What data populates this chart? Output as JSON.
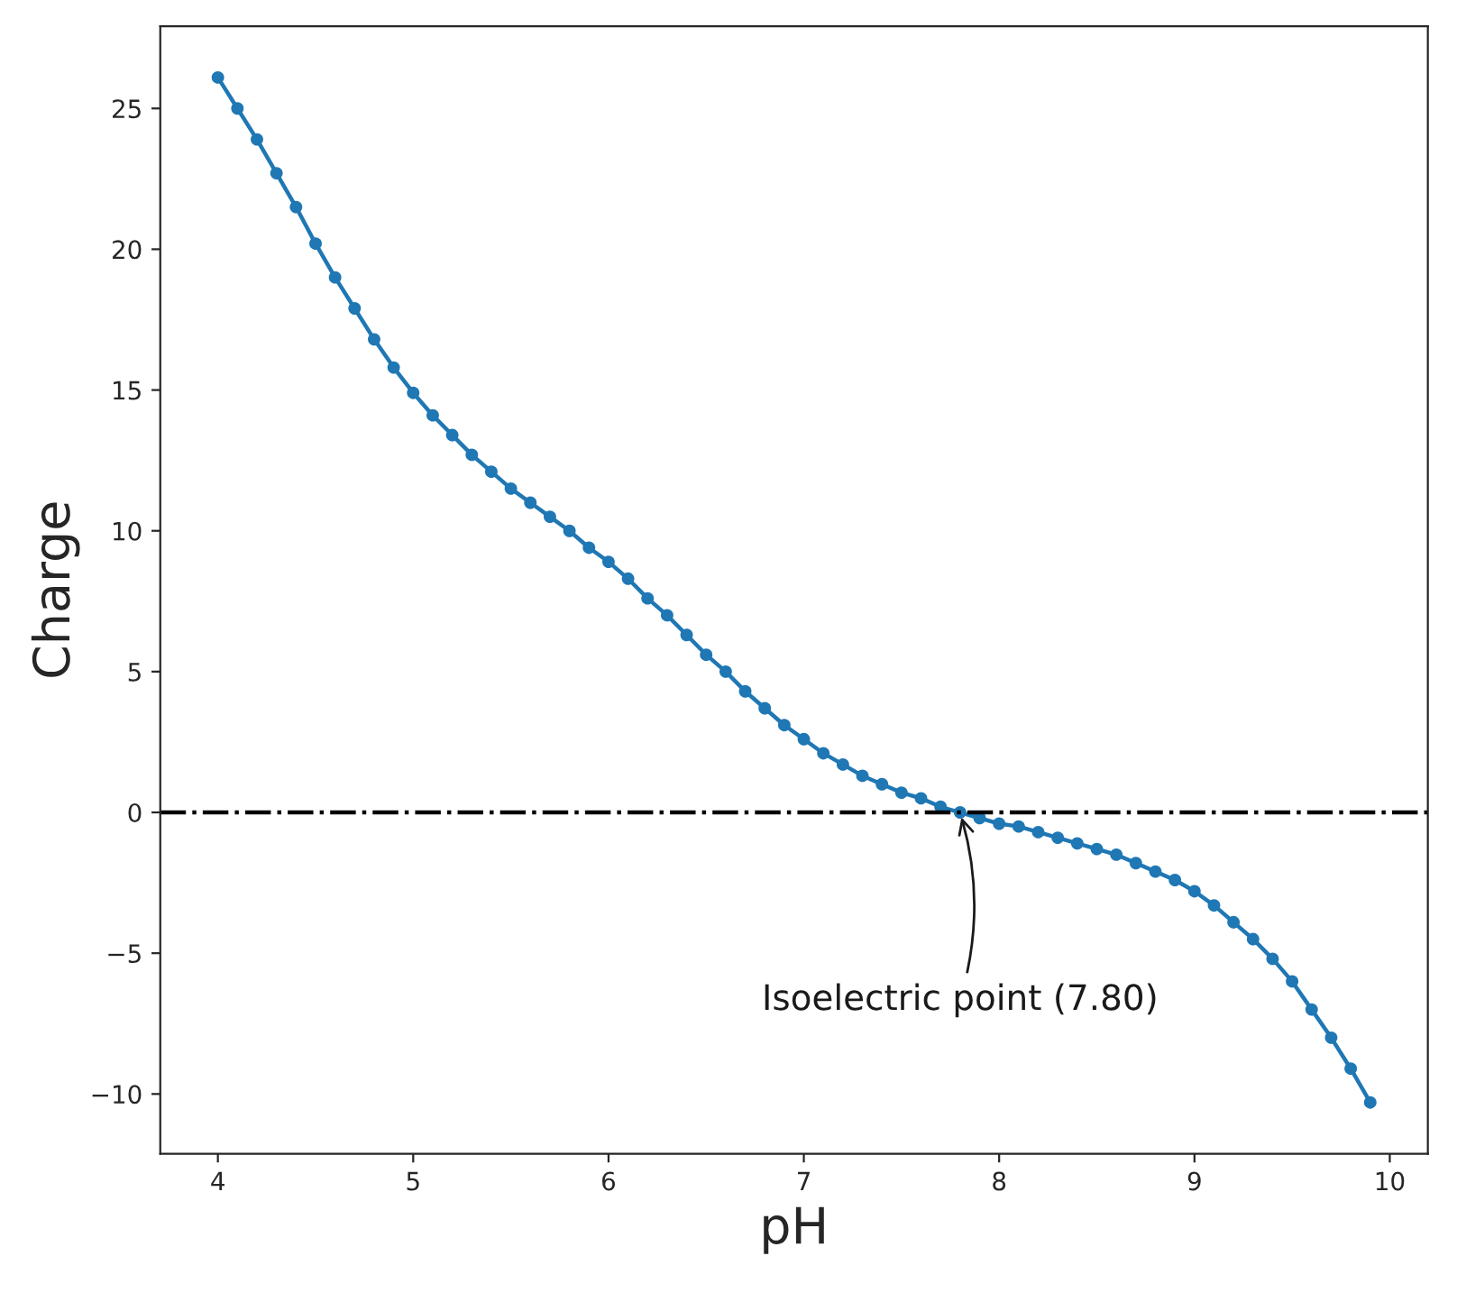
{
  "chart_data": {
    "type": "line",
    "xlabel": "pH",
    "ylabel": "Charge",
    "x": [
      4.0,
      4.1,
      4.2,
      4.3,
      4.4,
      4.5,
      4.6,
      4.7,
      4.8,
      4.9,
      5.0,
      5.1,
      5.2,
      5.3,
      5.4,
      5.5,
      5.6,
      5.7,
      5.8,
      5.9,
      6.0,
      6.1,
      6.2,
      6.3,
      6.4,
      6.5,
      6.6,
      6.7,
      6.8,
      6.9,
      7.0,
      7.1,
      7.2,
      7.3,
      7.4,
      7.5,
      7.6,
      7.7,
      7.8,
      7.9,
      8.0,
      8.1,
      8.2,
      8.3,
      8.4,
      8.5,
      8.6,
      8.7,
      8.8,
      8.9,
      9.0,
      9.1,
      9.2,
      9.3,
      9.4,
      9.5,
      9.6,
      9.7,
      9.8,
      9.9
    ],
    "series": [
      {
        "color": "#1f77b4",
        "values": [
          26.1,
          25.0,
          23.9,
          22.7,
          21.5,
          20.2,
          19.0,
          17.9,
          16.8,
          15.8,
          14.9,
          14.1,
          13.4,
          12.7,
          12.1,
          11.5,
          11.0,
          10.5,
          10.0,
          9.4,
          8.9,
          8.3,
          7.6,
          7.0,
          6.3,
          5.6,
          5.0,
          4.3,
          3.7,
          3.1,
          2.6,
          2.1,
          1.7,
          1.3,
          1.0,
          0.7,
          0.5,
          0.2,
          0.0,
          -0.2,
          -0.4,
          -0.5,
          -0.7,
          -0.9,
          -1.1,
          -1.3,
          -1.5,
          -1.8,
          -2.1,
          -2.4,
          -2.8,
          -3.3,
          -3.9,
          -4.5,
          -5.2,
          -6.0,
          -7.0,
          -8.0,
          -9.1,
          -10.3
        ]
      }
    ],
    "marker": "circle",
    "line_style": "solid",
    "grid": false,
    "legend": false,
    "xlim": [
      3.705,
      10.195
    ],
    "xticks": [
      4,
      5,
      6,
      7,
      8,
      9,
      10
    ],
    "ylim": [
      -12.12,
      27.92
    ],
    "yticks": [
      {
        "value": -10,
        "label": "−10"
      },
      {
        "value": -5,
        "label": "−5"
      },
      0,
      5,
      10,
      15,
      20,
      25
    ],
    "ref_lines": [
      {
        "axis": "y",
        "value": 0,
        "color": "#000000",
        "line_style": "dashdot"
      }
    ],
    "annotations": [
      {
        "text": "Isoelectric point (7.80)",
        "x": 7.8,
        "y": 0
      }
    ]
  }
}
